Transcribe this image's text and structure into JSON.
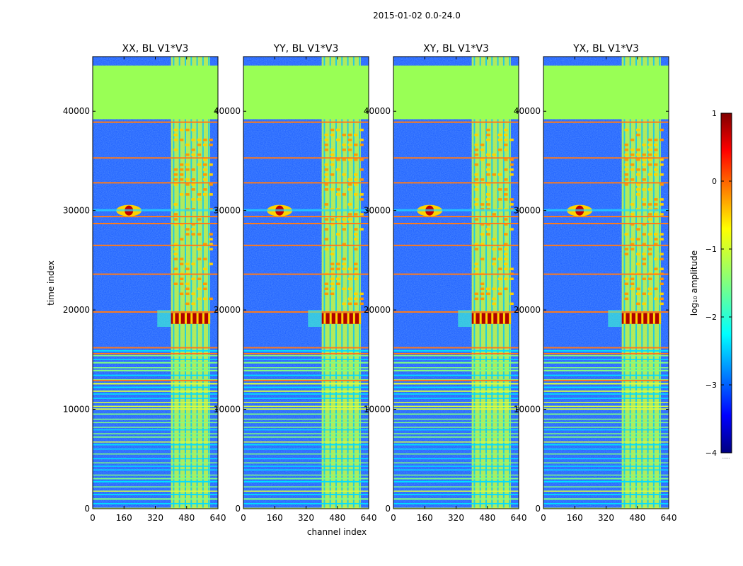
{
  "chart_data": {
    "type": "heatmap",
    "suptitle": "2015-01-02 0.0-24.0",
    "xlabel": "channel index",
    "ylabel": "time index",
    "xlim": [
      0,
      640
    ],
    "ylim": [
      0,
      45500
    ],
    "xticks": [
      0,
      160,
      320,
      480,
      640
    ],
    "yticks": [
      0,
      10000,
      20000,
      30000,
      40000
    ],
    "panels": [
      {
        "title": "XX, BL V1*V3"
      },
      {
        "title": "YY, BL V1*V3"
      },
      {
        "title": "XY, BL V1*V3"
      },
      {
        "title": "YX, BL V1*V3"
      }
    ],
    "flagged_time_range": [
      39200,
      44600
    ],
    "strong_channel_range": [
      400,
      600
    ],
    "bright_time_range": [
      18600,
      19700
    ],
    "colorbar": {
      "label": "log₁₀ amplitude",
      "range": [
        -4,
        1
      ],
      "ticks": [
        1,
        0,
        -1,
        -2,
        -3,
        -4
      ],
      "colormap": "jet",
      "below_note": "......"
    }
  }
}
